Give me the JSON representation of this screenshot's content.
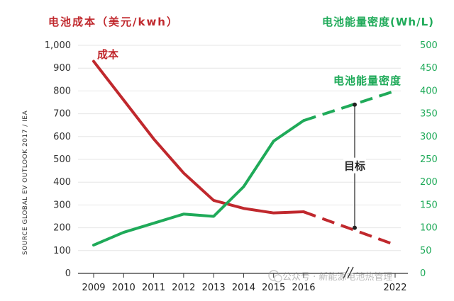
{
  "chart_data": {
    "type": "line",
    "left_axis_title": "电池成本（美元/kwh）",
    "right_axis_title": "电池能量密度(Wh/L)",
    "source": "SOURCE GLOBAL EV OUTLOOK 2017 / IEA",
    "annotation_target": "目标",
    "watermark": "公众号 · 新能源电池热管理",
    "x_categories": [
      "2009",
      "2010",
      "2011",
      "2012",
      "2013",
      "2014",
      "2015",
      "2016",
      "2022"
    ],
    "y_left": {
      "range": [
        0,
        1000
      ],
      "ticks": [
        "0",
        "100",
        "200",
        "300",
        "400",
        "500",
        "600",
        "700",
        "800",
        "900",
        "1,000"
      ]
    },
    "y_right": {
      "range": [
        0,
        500
      ],
      "ticks": [
        "0",
        "50",
        "100",
        "150",
        "200",
        "250",
        "300",
        "350",
        "400",
        "450",
        "500"
      ]
    },
    "series": [
      {
        "name": "成本",
        "axis": "left",
        "color": "#c0282d",
        "x": [
          "2009",
          "2010",
          "2011",
          "2012",
          "2013",
          "2014",
          "2015",
          "2016"
        ],
        "values": [
          930,
          760,
          590,
          440,
          320,
          285,
          265,
          270
        ],
        "projection": {
          "x": [
            "2016",
            "2022"
          ],
          "values": [
            270,
            125
          ],
          "dashed": true
        },
        "target": {
          "x": "2022",
          "value": 200
        }
      },
      {
        "name": "电池能量密度",
        "axis": "right",
        "color": "#1faa59",
        "x": [
          "2009",
          "2010",
          "2011",
          "2012",
          "2013",
          "2014",
          "2015",
          "2016"
        ],
        "values": [
          62,
          90,
          110,
          130,
          125,
          190,
          290,
          335
        ],
        "projection": {
          "x": [
            "2016",
            "2022"
          ],
          "values": [
            335,
            400
          ],
          "dashed": true
        },
        "target": {
          "x": "2022",
          "value": 370
        }
      }
    ]
  }
}
